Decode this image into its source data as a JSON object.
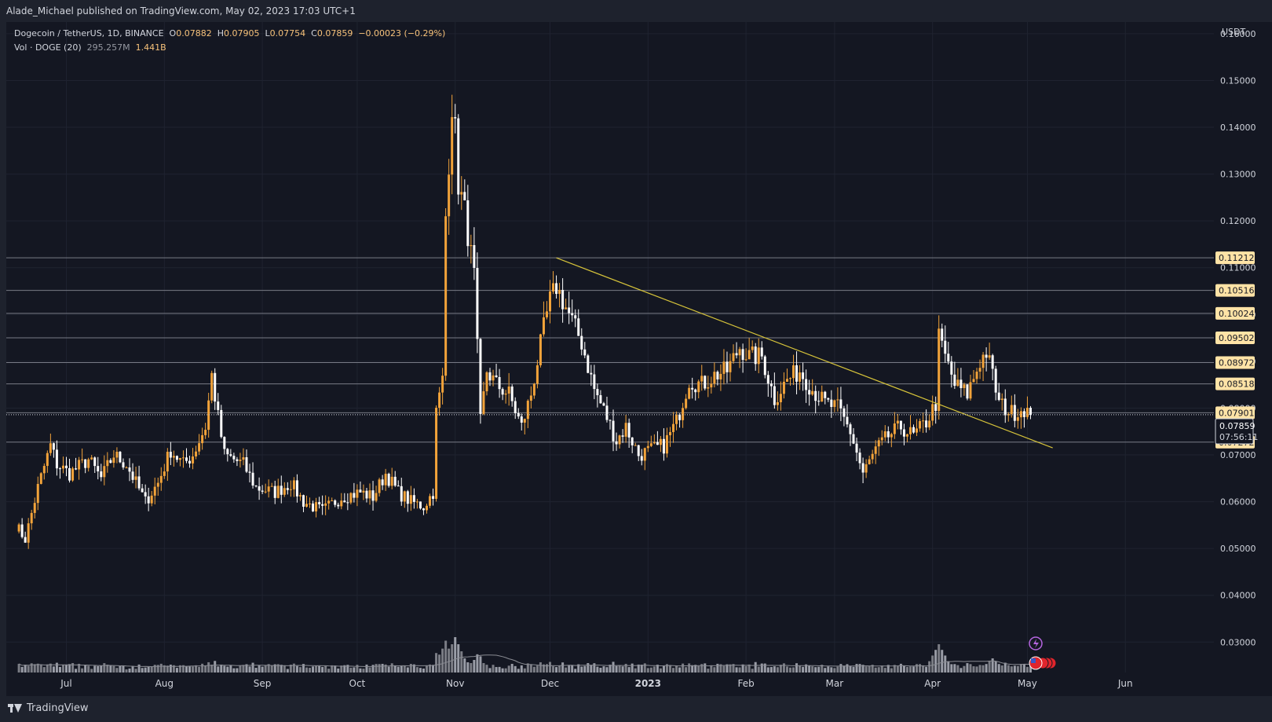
{
  "header": {
    "published_text": "Alade_Michael published on TradingView.com, May 02, 2023 17:03 UTC+1"
  },
  "legend": {
    "symbol": "Dogecoin / TetherUS, 1D, BINANCE",
    "o_label": "O",
    "o_value": "0.07882",
    "h_label": "H",
    "h_value": "0.07905",
    "l_label": "L",
    "l_value": "0.07754",
    "c_label": "C",
    "c_value": "0.07859",
    "change": "−0.00023 (−0.29%)",
    "vol_label": "Vol · DOGE (20)",
    "vol_ma": "295.257M",
    "vol_value": "1.441B"
  },
  "footer": {
    "brand": "TradingView"
  },
  "colors": {
    "background": "#141722",
    "up": "#f2a33a",
    "down": "#ffffff",
    "trendline": "#d6c33a",
    "level_line": "#787b86",
    "label_bg": "#ffe3a6",
    "volume_up": "#8d8f96",
    "volume_down": "#b2b5be"
  },
  "chart_data": {
    "type": "candlestick",
    "symbol": "Dogecoin / TetherUS",
    "interval": "1D",
    "exchange": "BINANCE",
    "currency_label": "USDT",
    "ylim": [
      0.0235,
      0.1625
    ],
    "y_ticks": [
      "0.03000",
      "0.04000",
      "0.05000",
      "0.06000",
      "0.07000",
      "0.08000",
      "0.09000",
      "0.10000",
      "0.11000",
      "0.12000",
      "0.13000",
      "0.14000",
      "0.15000",
      "0.16000"
    ],
    "x_ticks": [
      "Jul",
      "Aug",
      "Sep",
      "Oct",
      "Nov",
      "Dec",
      "2023",
      "Feb",
      "Mar",
      "Apr",
      "May",
      "Jun"
    ],
    "horizontal_levels": [
      0.11212,
      0.10516,
      0.10024,
      0.09502,
      0.08972,
      0.08518,
      0.07901,
      0.07272
    ],
    "level_labels": [
      "0.11212",
      "0.10516",
      "0.10024",
      "0.09502",
      "0.08972",
      "0.08518",
      "0.07901",
      "0.07272"
    ],
    "last_price": "0.07859",
    "countdown": "07:56:11",
    "trendline": {
      "start": {
        "date": "2022-12-03",
        "price": 0.1121
      },
      "end": {
        "date": "2023-05-09",
        "price": 0.0715
      }
    },
    "price_path": [
      [
        "2022-06-15",
        0.055
      ],
      [
        "2022-06-18",
        0.052
      ],
      [
        "2022-06-22",
        0.063
      ],
      [
        "2022-06-26",
        0.072
      ],
      [
        "2022-06-28",
        0.068
      ],
      [
        "2022-07-02",
        0.066
      ],
      [
        "2022-07-08",
        0.069
      ],
      [
        "2022-07-12",
        0.065
      ],
      [
        "2022-07-16",
        0.07
      ],
      [
        "2022-07-20",
        0.068
      ],
      [
        "2022-07-26",
        0.06
      ],
      [
        "2022-07-30",
        0.064
      ],
      [
        "2022-08-03",
        0.071
      ],
      [
        "2022-08-07",
        0.068
      ],
      [
        "2022-08-10",
        0.07
      ],
      [
        "2022-08-14",
        0.076
      ],
      [
        "2022-08-16",
        0.087
      ],
      [
        "2022-08-18",
        0.078
      ],
      [
        "2022-08-20",
        0.07
      ],
      [
        "2022-08-26",
        0.068
      ],
      [
        "2022-08-30",
        0.063
      ],
      [
        "2022-09-05",
        0.062
      ],
      [
        "2022-09-10",
        0.064
      ],
      [
        "2022-09-14",
        0.06
      ],
      [
        "2022-09-20",
        0.058
      ],
      [
        "2022-09-26",
        0.061
      ],
      [
        "2022-10-02",
        0.062
      ],
      [
        "2022-10-06",
        0.061
      ],
      [
        "2022-10-10",
        0.066
      ],
      [
        "2022-10-14",
        0.062
      ],
      [
        "2022-10-18",
        0.06
      ],
      [
        "2022-10-22",
        0.059
      ],
      [
        "2022-10-25",
        0.062
      ],
      [
        "2022-10-26",
        0.079
      ],
      [
        "2022-10-28",
        0.086
      ],
      [
        "2022-10-29",
        0.121
      ],
      [
        "2022-10-31",
        0.145
      ],
      [
        "2022-11-01",
        0.139
      ],
      [
        "2022-11-02",
        0.128
      ],
      [
        "2022-11-04",
        0.122
      ],
      [
        "2022-11-07",
        0.108
      ],
      [
        "2022-11-09",
        0.077
      ],
      [
        "2022-11-11",
        0.088
      ],
      [
        "2022-11-14",
        0.085
      ],
      [
        "2022-11-18",
        0.083
      ],
      [
        "2022-11-22",
        0.076
      ],
      [
        "2022-11-25",
        0.083
      ],
      [
        "2022-11-29",
        0.097
      ],
      [
        "2022-12-01",
        0.103
      ],
      [
        "2022-12-03",
        0.106
      ],
      [
        "2022-12-07",
        0.1
      ],
      [
        "2022-12-11",
        0.094
      ],
      [
        "2022-12-15",
        0.084
      ],
      [
        "2022-12-19",
        0.078
      ],
      [
        "2022-12-22",
        0.073
      ],
      [
        "2022-12-25",
        0.076
      ],
      [
        "2022-12-29",
        0.07
      ],
      [
        "2023-01-02",
        0.071
      ],
      [
        "2023-01-06",
        0.072
      ],
      [
        "2023-01-10",
        0.077
      ],
      [
        "2023-01-14",
        0.086
      ],
      [
        "2023-01-18",
        0.085
      ],
      [
        "2023-01-22",
        0.087
      ],
      [
        "2023-01-26",
        0.088
      ],
      [
        "2023-01-30",
        0.093
      ],
      [
        "2023-02-02",
        0.091
      ],
      [
        "2023-02-06",
        0.091
      ],
      [
        "2023-02-10",
        0.082
      ],
      [
        "2023-02-14",
        0.086
      ],
      [
        "2023-02-18",
        0.088
      ],
      [
        "2023-02-22",
        0.084
      ],
      [
        "2023-02-26",
        0.081
      ],
      [
        "2023-03-02",
        0.08
      ],
      [
        "2023-03-06",
        0.075
      ],
      [
        "2023-03-10",
        0.066
      ],
      [
        "2023-03-14",
        0.071
      ],
      [
        "2023-03-18",
        0.074
      ],
      [
        "2023-03-22",
        0.076
      ],
      [
        "2023-03-26",
        0.074
      ],
      [
        "2023-03-30",
        0.077
      ],
      [
        "2023-04-02",
        0.081
      ],
      [
        "2023-04-03",
        0.095
      ],
      [
        "2023-04-05",
        0.091
      ],
      [
        "2023-04-08",
        0.085
      ],
      [
        "2023-04-12",
        0.083
      ],
      [
        "2023-04-16",
        0.09
      ],
      [
        "2023-04-18",
        0.092
      ],
      [
        "2023-04-20",
        0.087
      ],
      [
        "2023-04-22",
        0.081
      ],
      [
        "2023-04-26",
        0.079
      ],
      [
        "2023-04-30",
        0.08
      ],
      [
        "2023-05-02",
        0.0786
      ]
    ],
    "volume_spikes": [
      [
        "2022-10-29",
        0.38
      ],
      [
        "2022-11-01",
        0.45
      ],
      [
        "2022-11-08",
        0.2
      ],
      [
        "2023-04-03",
        0.36
      ],
      [
        "2023-04-20",
        0.18
      ]
    ]
  }
}
